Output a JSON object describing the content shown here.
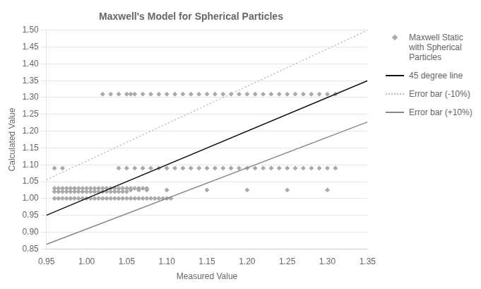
{
  "chart_data": {
    "type": "scatter",
    "title": "Maxwell's Model for Spherical Particles",
    "xlabel": "Measured Value",
    "ylabel": "Calculated Value",
    "xlim": [
      0.95,
      1.35
    ],
    "ylim": [
      0.85,
      1.5
    ],
    "xticks": [
      0.95,
      {
        "value": 1.0,
        "label": "1.00"
      },
      1.05,
      {
        "value": 1.1,
        "label": "1.10"
      },
      1.15,
      {
        "value": 1.2,
        "label": "1.20"
      },
      1.25,
      {
        "value": 1.3,
        "label": "1.30"
      },
      1.35
    ],
    "yticks": [
      0.85,
      {
        "value": 0.9,
        "label": "0.90"
      },
      0.95,
      {
        "value": 1.0,
        "label": "1.00"
      },
      1.05,
      {
        "value": 1.1,
        "label": "1.10"
      },
      1.15,
      {
        "value": 1.2,
        "label": "1.20"
      },
      1.25,
      {
        "value": 1.3,
        "label": "1.30"
      },
      1.35,
      {
        "value": 1.4,
        "label": "1.40"
      },
      1.45,
      {
        "value": 1.5,
        "label": "1.50"
      }
    ],
    "grid": "y",
    "legend": "right",
    "series": [
      {
        "name": "Maxwell Static\nwith Spherical\nParticles",
        "type": "scatter",
        "color": "#aaaaaa",
        "marker": "diamond",
        "x": [
          0.96,
          0.965,
          0.97,
          0.975,
          0.98,
          0.985,
          0.99,
          0.995,
          1.0,
          1.005,
          1.01,
          1.015,
          1.02,
          1.025,
          1.03,
          1.035,
          1.04,
          1.045,
          1.05,
          1.055,
          1.06,
          1.065,
          1.07,
          1.075,
          1.08,
          1.085,
          1.09,
          1.095,
          1.1,
          1.105,
          0.96,
          0.965,
          0.97,
          0.975,
          0.98,
          0.985,
          0.99,
          0.995,
          1.0,
          1.005,
          1.01,
          1.015,
          1.02,
          1.025,
          1.03,
          1.035,
          1.04,
          1.045,
          1.05,
          1.055,
          1.065,
          1.075,
          1.1,
          1.15,
          1.2,
          1.25,
          1.3,
          0.96,
          0.965,
          0.97,
          0.975,
          0.98,
          0.985,
          0.99,
          0.995,
          1.0,
          1.005,
          1.01,
          1.015,
          1.02,
          1.025,
          1.03,
          1.035,
          1.04,
          1.045,
          1.05,
          1.055,
          1.06,
          1.065,
          1.07,
          1.075,
          0.96,
          0.97,
          1.04,
          1.05,
          1.06,
          1.07,
          1.08,
          1.09,
          1.1,
          1.11,
          1.12,
          1.13,
          1.14,
          1.15,
          1.16,
          1.17,
          1.18,
          1.19,
          1.2,
          1.21,
          1.22,
          1.23,
          1.24,
          1.25,
          1.26,
          1.27,
          1.28,
          1.29,
          1.3,
          1.31,
          1.02,
          1.03,
          1.04,
          1.05,
          1.055,
          1.06,
          1.07,
          1.08,
          1.09,
          1.1,
          1.11,
          1.12,
          1.13,
          1.14,
          1.15,
          1.16,
          1.17,
          1.18,
          1.19,
          1.2,
          1.21,
          1.22,
          1.23,
          1.24,
          1.25,
          1.26,
          1.27,
          1.28,
          1.29,
          1.3,
          1.31
        ],
        "values": [
          1.0,
          1.0,
          1.0,
          1.0,
          1.0,
          1.0,
          1.0,
          1.0,
          1.0,
          1.0,
          1.0,
          1.0,
          1.0,
          1.0,
          1.0,
          1.0,
          1.0,
          1.0,
          1.0,
          1.0,
          1.0,
          1.0,
          1.0,
          1.0,
          1.0,
          1.0,
          1.0,
          1.0,
          1.0,
          1.0,
          1.02,
          1.02,
          1.02,
          1.02,
          1.02,
          1.02,
          1.02,
          1.02,
          1.02,
          1.02,
          1.02,
          1.02,
          1.02,
          1.02,
          1.02,
          1.02,
          1.02,
          1.02,
          1.02,
          1.025,
          1.025,
          1.025,
          1.025,
          1.025,
          1.025,
          1.025,
          1.025,
          1.03,
          1.03,
          1.03,
          1.03,
          1.03,
          1.03,
          1.03,
          1.03,
          1.03,
          1.03,
          1.03,
          1.03,
          1.03,
          1.03,
          1.03,
          1.03,
          1.03,
          1.03,
          1.03,
          1.03,
          1.03,
          1.03,
          1.03,
          1.03,
          1.09,
          1.09,
          1.09,
          1.09,
          1.09,
          1.09,
          1.09,
          1.09,
          1.09,
          1.09,
          1.09,
          1.09,
          1.09,
          1.09,
          1.09,
          1.09,
          1.09,
          1.09,
          1.09,
          1.09,
          1.09,
          1.09,
          1.09,
          1.09,
          1.09,
          1.09,
          1.09,
          1.09,
          1.09,
          1.09,
          1.31,
          1.31,
          1.31,
          1.31,
          1.31,
          1.31,
          1.31,
          1.31,
          1.31,
          1.31,
          1.31,
          1.31,
          1.31,
          1.31,
          1.31,
          1.31,
          1.31,
          1.31,
          1.31,
          1.31,
          1.31,
          1.31,
          1.31,
          1.31,
          1.31,
          1.31,
          1.31,
          1.31,
          1.31,
          1.31,
          1.31
        ]
      },
      {
        "name": "45 degree line",
        "type": "line",
        "color": "#111111",
        "line_style": "solid",
        "x": [
          0.95,
          1.35
        ],
        "values": [
          0.95,
          1.35
        ]
      },
      {
        "name": "Error bar (-10%)",
        "type": "line",
        "color": "#bbbbbb",
        "line_style": "dotted",
        "x": [
          0.95,
          1.35
        ],
        "values": [
          1.0555555555555556,
          1.5
        ]
      },
      {
        "name": "Error bar (+10%)",
        "type": "line",
        "color": "#888888",
        "line_style": "solid",
        "x": [
          0.95,
          1.35
        ],
        "values": [
          0.8636363636363636,
          1.2272727272727273
        ]
      }
    ]
  }
}
